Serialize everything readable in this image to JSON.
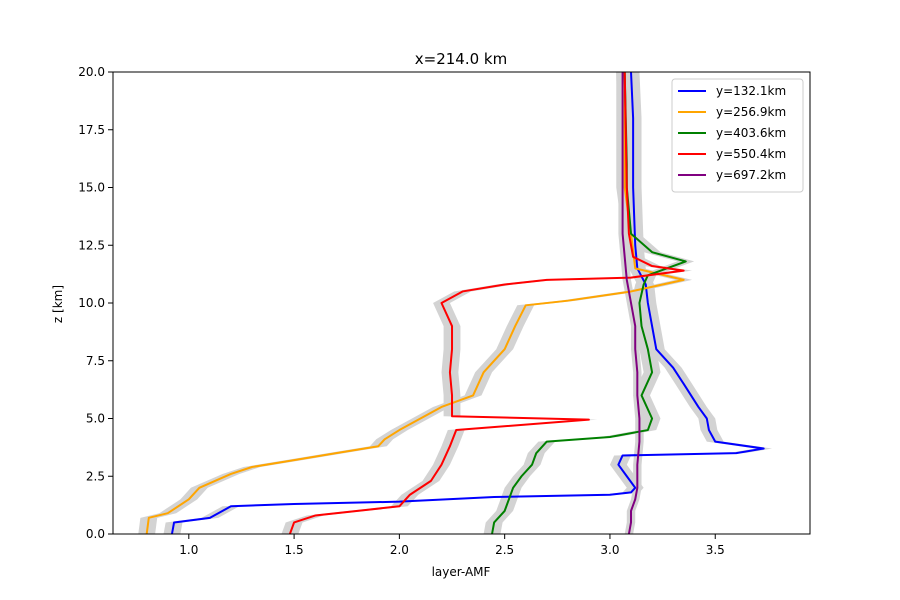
{
  "chart_data": {
    "type": "line",
    "title": "x=214.0 km",
    "xlabel": "layer-AMF",
    "ylabel": "z [km]",
    "xlim": [
      0.64,
      3.95
    ],
    "ylim": [
      0,
      20
    ],
    "xticks": [
      "1.0",
      "1.5",
      "2.0",
      "2.5",
      "3.0",
      "3.5"
    ],
    "xtick_values": [
      1.0,
      1.5,
      2.0,
      2.5,
      3.0,
      3.5
    ],
    "yticks": [
      "0.0",
      "2.5",
      "5.0",
      "7.5",
      "10.0",
      "12.5",
      "15.0",
      "17.5",
      "20.0"
    ],
    "ytick_values": [
      0,
      2.5,
      5.0,
      7.5,
      10.0,
      12.5,
      15.0,
      17.5,
      20.0
    ],
    "grid": false,
    "legend_position": "top-right",
    "uncertainty_band_color": "#d3d3d3",
    "series": [
      {
        "name": "y=132.1km",
        "color": "#0000ff",
        "points": [
          [
            0.92,
            0
          ],
          [
            0.93,
            0.5
          ],
          [
            1.1,
            0.7
          ],
          [
            1.2,
            1.2
          ],
          [
            1.5,
            1.3
          ],
          [
            2.0,
            1.4
          ],
          [
            2.45,
            1.6
          ],
          [
            3.0,
            1.7
          ],
          [
            3.1,
            1.8
          ],
          [
            3.12,
            2.0
          ],
          [
            3.08,
            2.5
          ],
          [
            3.04,
            3.0
          ],
          [
            3.06,
            3.4
          ],
          [
            3.6,
            3.5
          ],
          [
            3.73,
            3.7
          ],
          [
            3.5,
            4.0
          ],
          [
            3.47,
            4.5
          ],
          [
            3.46,
            5.0
          ],
          [
            3.42,
            5.5
          ],
          [
            3.35,
            6.5
          ],
          [
            3.3,
            7.2
          ],
          [
            3.22,
            8.0
          ],
          [
            3.2,
            9.0
          ],
          [
            3.18,
            10.0
          ],
          [
            3.17,
            10.8
          ],
          [
            3.13,
            11.5
          ],
          [
            3.12,
            12.5
          ],
          [
            3.11,
            15.0
          ],
          [
            3.11,
            18.0
          ],
          [
            3.1,
            20.0
          ]
        ],
        "band": 0.04
      },
      {
        "name": "y=256.9km",
        "color": "#ffa500",
        "points": [
          [
            0.8,
            0
          ],
          [
            0.81,
            0.7
          ],
          [
            0.9,
            0.9
          ],
          [
            1.0,
            1.5
          ],
          [
            1.05,
            2.0
          ],
          [
            1.2,
            2.6
          ],
          [
            1.3,
            2.9
          ],
          [
            1.5,
            3.2
          ],
          [
            1.7,
            3.5
          ],
          [
            1.9,
            3.8
          ],
          [
            1.93,
            4.1
          ],
          [
            2.0,
            4.5
          ],
          [
            2.1,
            5.0
          ],
          [
            2.2,
            5.5
          ],
          [
            2.35,
            6.0
          ],
          [
            2.4,
            7.0
          ],
          [
            2.5,
            8.0
          ],
          [
            2.55,
            9.0
          ],
          [
            2.6,
            9.9
          ],
          [
            2.8,
            10.1
          ],
          [
            3.1,
            10.5
          ],
          [
            3.35,
            11.0
          ],
          [
            3.12,
            11.5
          ],
          [
            3.1,
            13.0
          ],
          [
            3.07,
            15.0
          ],
          [
            3.07,
            20.0
          ]
        ],
        "band": 0.04
      },
      {
        "name": "y=403.6km",
        "color": "#008000",
        "points": [
          [
            2.44,
            0
          ],
          [
            2.45,
            0.5
          ],
          [
            2.5,
            1.0
          ],
          [
            2.52,
            1.5
          ],
          [
            2.54,
            2.0
          ],
          [
            2.58,
            2.5
          ],
          [
            2.63,
            3.0
          ],
          [
            2.65,
            3.5
          ],
          [
            2.7,
            4.0
          ],
          [
            3.0,
            4.2
          ],
          [
            3.18,
            4.5
          ],
          [
            3.2,
            5.0
          ],
          [
            3.15,
            6.0
          ],
          [
            3.2,
            7.0
          ],
          [
            3.18,
            8.0
          ],
          [
            3.15,
            9.0
          ],
          [
            3.14,
            10.0
          ],
          [
            3.16,
            10.8
          ],
          [
            3.18,
            11.2
          ],
          [
            3.36,
            11.8
          ],
          [
            3.2,
            12.2
          ],
          [
            3.1,
            13.0
          ],
          [
            3.09,
            14.0
          ],
          [
            3.08,
            15.0
          ],
          [
            3.08,
            16.0
          ],
          [
            3.07,
            20.0
          ]
        ],
        "band": 0.04
      },
      {
        "name": "y=550.4km",
        "color": "#ff0000",
        "points": [
          [
            1.48,
            0
          ],
          [
            1.5,
            0.5
          ],
          [
            1.6,
            0.8
          ],
          [
            2.0,
            1.2
          ],
          [
            2.05,
            1.7
          ],
          [
            2.15,
            2.3
          ],
          [
            2.2,
            3.0
          ],
          [
            2.24,
            3.8
          ],
          [
            2.27,
            4.5
          ],
          [
            2.9,
            4.95
          ],
          [
            2.25,
            5.1
          ],
          [
            2.25,
            5.5
          ],
          [
            2.25,
            6.0
          ],
          [
            2.24,
            7.0
          ],
          [
            2.25,
            8.0
          ],
          [
            2.25,
            9.0
          ],
          [
            2.2,
            10.0
          ],
          [
            2.3,
            10.5
          ],
          [
            2.5,
            10.8
          ],
          [
            2.7,
            11.0
          ],
          [
            3.1,
            11.1
          ],
          [
            3.35,
            11.4
          ],
          [
            3.2,
            11.6
          ],
          [
            3.11,
            12.0
          ],
          [
            3.09,
            13.0
          ],
          [
            3.08,
            15.0
          ],
          [
            3.07,
            20.0
          ]
        ],
        "band": 0.04
      },
      {
        "name": "y=697.2km",
        "color": "#800080",
        "points": [
          [
            3.09,
            0
          ],
          [
            3.1,
            0.5
          ],
          [
            3.1,
            1.0
          ],
          [
            3.12,
            1.5
          ],
          [
            3.13,
            2.0
          ],
          [
            3.13,
            3.0
          ],
          [
            3.14,
            4.0
          ],
          [
            3.14,
            5.0
          ],
          [
            3.13,
            6.0
          ],
          [
            3.13,
            7.0
          ],
          [
            3.12,
            8.0
          ],
          [
            3.12,
            9.0
          ],
          [
            3.1,
            10.0
          ],
          [
            3.08,
            11.0
          ],
          [
            3.07,
            12.0
          ],
          [
            3.06,
            13.0
          ],
          [
            3.06,
            14.0
          ],
          [
            3.06,
            15.0
          ],
          [
            3.06,
            16.0
          ],
          [
            3.06,
            18.0
          ],
          [
            3.06,
            20.0
          ]
        ],
        "band": 0.02
      }
    ]
  }
}
